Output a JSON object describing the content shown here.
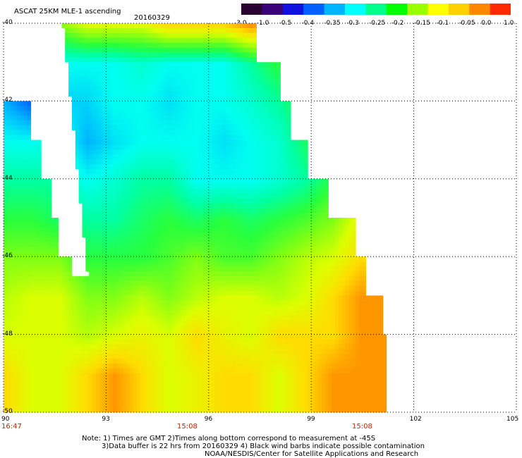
{
  "header": {
    "title": "ASCAT 25KM MLE-1 ascending",
    "date": "20160329"
  },
  "colorbar": {
    "labels": [
      "-3.0",
      "-1.0",
      "-0.5",
      "-0.4",
      "-0.35",
      "-0.3",
      "-0.25",
      "-0.2",
      "-0.15",
      "-0.1",
      "-0.05",
      "0.0",
      "1.0"
    ],
    "colors": [
      "#2a0030",
      "#3a0078",
      "#1010e0",
      "#0060ff",
      "#00b4ff",
      "#00ffff",
      "#00ff8c",
      "#00ff00",
      "#9cff00",
      "#ffff00",
      "#ffd000",
      "#ff8800",
      "#ff2a00"
    ]
  },
  "axes": {
    "y_ticks": [
      "-40",
      "-42",
      "-44",
      "-46",
      "-48",
      "-50"
    ],
    "x_ticks": [
      "90",
      "93",
      "96",
      "99",
      "102",
      "105"
    ]
  },
  "time_labels": [
    "16:47",
    "15:08",
    "15:08"
  ],
  "notes": [
    "Note: 1) Times are GMT 2)Times along bottom correspond to measurement at -45S",
    "3)Data buffer is 22 hrs from 20160329 4) Black wind barbs indicate possible contamination",
    "NOAA/NESDIS/Center for Satellite Applications and Research"
  ],
  "chart_data": {
    "type": "heatmap",
    "title": "ASCAT 25KM MLE-1 ascending",
    "subtitle": "20160329",
    "xlabel": "",
    "ylabel": "",
    "x_ticks": [
      90,
      93,
      96,
      99,
      102,
      105
    ],
    "y_ticks": [
      -40,
      -42,
      -44,
      -46,
      -48,
      -50
    ],
    "xlim": [
      90,
      105
    ],
    "ylim": [
      -50,
      -40
    ],
    "color_scale": [
      -3.0,
      -1.0,
      -0.5,
      -0.4,
      -0.35,
      -0.3,
      -0.25,
      -0.2,
      -0.15,
      -0.1,
      -0.05,
      0.0,
      1.0
    ],
    "grid": true,
    "swath": {
      "cols": 14,
      "rows": 10,
      "lon_start": 90,
      "lon_end": 101.2,
      "lat_start": -40,
      "lat_end": -50,
      "left_gap_lon": [
        90.2,
        90.5,
        90.7,
        91.0,
        91.3,
        91.5,
        91.9,
        92.3,
        92.7,
        93.0
      ],
      "right_edge_lon": [
        97.3,
        98.0,
        98.3,
        98.8,
        99.4,
        100.2,
        100.5,
        101.0,
        101.3,
        101.5
      ],
      "values": [
        [
          -0.2,
          -0.2,
          -0.15,
          -0.1,
          -0.1,
          -0.1,
          -0.05,
          -0.05,
          -0.05,
          0.0,
          -0.05,
          -0.1,
          -0.1,
          -0.1
        ],
        [
          -0.25,
          -0.28,
          -0.3,
          -0.3,
          -0.3,
          -0.28,
          -0.3,
          -0.3,
          -0.3,
          -0.25,
          -0.2,
          -0.15,
          -0.1,
          -0.1
        ],
        [
          -0.35,
          -0.4,
          -0.33,
          -0.33,
          -0.3,
          -0.3,
          -0.32,
          -0.3,
          -0.3,
          -0.28,
          -0.25,
          -0.2,
          -0.15,
          -0.1
        ],
        [
          -0.3,
          -0.3,
          -0.28,
          -0.35,
          -0.32,
          -0.3,
          -0.3,
          -0.3,
          -0.32,
          -0.3,
          -0.28,
          -0.22,
          -0.15,
          -0.1
        ],
        [
          -0.25,
          -0.25,
          -0.25,
          -0.3,
          -0.28,
          -0.25,
          -0.25,
          -0.3,
          -0.3,
          -0.3,
          -0.28,
          -0.25,
          -0.2,
          -0.1
        ],
        [
          -0.2,
          -0.2,
          -0.22,
          -0.25,
          -0.25,
          -0.22,
          -0.2,
          -0.22,
          -0.2,
          -0.22,
          -0.2,
          -0.18,
          -0.15,
          -0.08
        ],
        [
          -0.15,
          -0.15,
          -0.15,
          -0.2,
          -0.2,
          -0.2,
          -0.18,
          -0.15,
          -0.18,
          -0.18,
          -0.15,
          -0.12,
          -0.1,
          -0.05
        ],
        [
          -0.12,
          -0.1,
          -0.1,
          -0.15,
          -0.15,
          -0.12,
          -0.15,
          -0.12,
          -0.1,
          -0.1,
          -0.12,
          -0.1,
          -0.05,
          0.0
        ],
        [
          -0.1,
          -0.1,
          -0.1,
          -0.12,
          -0.1,
          -0.08,
          -0.1,
          -0.05,
          -0.08,
          -0.1,
          -0.05,
          -0.05,
          -0.05,
          0.0
        ],
        [
          -0.05,
          -0.1,
          -0.1,
          -0.05,
          0.0,
          -0.05,
          -0.1,
          -0.08,
          -0.05,
          -0.05,
          -0.1,
          -0.05,
          0.0,
          0.0
        ]
      ]
    }
  }
}
